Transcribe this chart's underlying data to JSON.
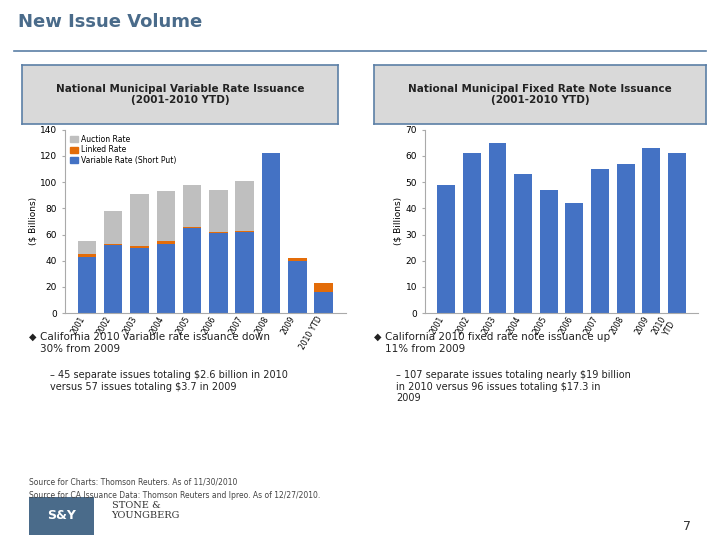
{
  "title": "New Issue Volume",
  "left_chart_title": "National Municipal Variable Rate Issuance\n(2001-2010 YTD)",
  "right_chart_title": "National Municipal Fixed Rate Note Issuance\n(2001-2010 YTD)",
  "left_years": [
    "2001",
    "2002",
    "2003",
    "2004",
    "2005",
    "2006",
    "2007",
    "2008",
    "2009",
    "2010 YTD"
  ],
  "right_years": [
    "2001",
    "2002",
    "2003",
    "2004",
    "2005",
    "2006",
    "2007",
    "2008",
    "2009",
    "2010\nYTD"
  ],
  "variable_rate": [
    43,
    52,
    50,
    53,
    65,
    61,
    62,
    122,
    40,
    16
  ],
  "linked_rate": [
    2,
    1,
    1,
    2,
    1,
    1,
    1,
    0,
    2,
    7
  ],
  "auction_rate": [
    10,
    25,
    40,
    38,
    32,
    32,
    38,
    0,
    0,
    0
  ],
  "right_values": [
    49,
    61,
    65,
    53,
    47,
    42,
    55,
    57,
    63,
    61
  ],
  "color_variable": "#4472C4",
  "color_linked": "#E36C09",
  "color_auction": "#BFBFBF",
  "color_right_bar": "#4472C4",
  "left_ylabel": "($ Billions)",
  "right_ylabel": "($ Billions)",
  "left_ylim": [
    0,
    140
  ],
  "right_ylim": [
    0,
    70
  ],
  "left_yticks": [
    0,
    20,
    40,
    60,
    80,
    100,
    120,
    140
  ],
  "right_yticks": [
    0,
    10,
    20,
    30,
    40,
    50,
    60,
    70
  ],
  "bg_color": "#FFFFFF",
  "header_bg": "#D9D9D9",
  "header_border": "#5B7FA6",
  "title_color": "#4A6B8A",
  "rule_color": "#5B7FA6",
  "bullet1_left": "California 2010 variable rate issuance down\n30% from 2009",
  "bullet2_left": "45 separate issues totaling $2.6 billion in 2010\nversus 57 issues totaling $3.7 in 2009",
  "bullet1_right": "California 2010 fixed rate note issuance up\n11% from 2009",
  "bullet2_right": "107 separate issues totaling nearly $19 billion\nin 2010 versus 96 issues totaling $17.3 in\n2009",
  "source1": "Source for Charts: Thomson Reuters. As of 11/30/2010",
  "source2": "Source for CA Issuance Data: Thomson Reuters and Ipreo. As of 12/27/2010.",
  "page_number": "7"
}
